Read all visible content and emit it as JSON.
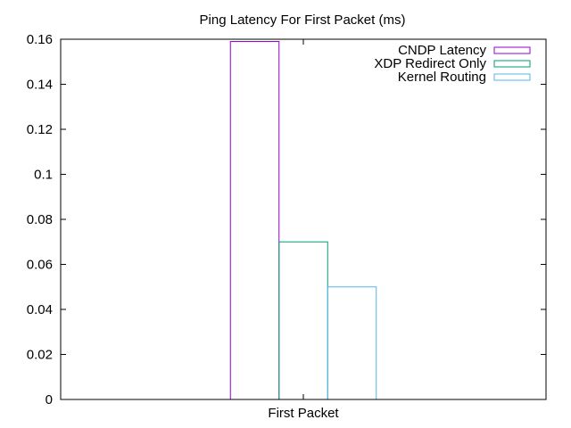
{
  "chart_data": {
    "type": "bar",
    "title": "Ping Latency For First Packet (ms)",
    "xlabel": "",
    "ylabel": "",
    "categories": [
      "First Packet"
    ],
    "series": [
      {
        "name": "CNDP Latency",
        "values": [
          0.159
        ],
        "color": "#9400d3"
      },
      {
        "name": "XDP Redirect Only",
        "values": [
          0.07
        ],
        "color": "#009e73"
      },
      {
        "name": "Kernel Routing",
        "values": [
          0.05
        ],
        "color": "#56b4e9"
      }
    ],
    "ylim": [
      0,
      0.16
    ],
    "yticks": [
      "0",
      "0.02",
      "0.04",
      "0.06",
      "0.08",
      "0.1",
      "0.12",
      "0.14",
      "0.16"
    ],
    "legend_position": "top-right",
    "grid": false
  }
}
